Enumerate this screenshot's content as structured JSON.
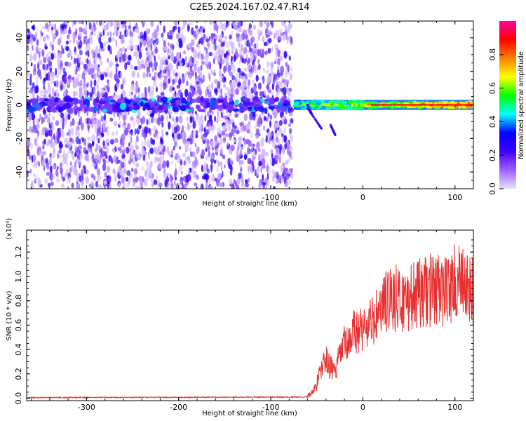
{
  "page": {
    "title": "C2E5.2024.167.02.47.R14"
  },
  "chart_data": [
    {
      "type": "heatmap",
      "xlabel": "Height of straight line (km)",
      "ylabel": "Frequency (Hz)",
      "xlim": [
        -365,
        120
      ],
      "ylim": [
        -50,
        50
      ],
      "x_ticks": [
        -300,
        -200,
        -100,
        0,
        100
      ],
      "y_ticks": [
        -40,
        -20,
        0,
        20,
        40
      ],
      "colorbar": {
        "label": "Normalized spectral amplitude",
        "range": [
          0.0,
          1.0
        ],
        "ticks": [
          0.0,
          0.2,
          0.4,
          0.6,
          0.8
        ],
        "colors": [
          "#e6e0ff",
          "#a060ff",
          "#4000ff",
          "#0000ff",
          "#00ffff",
          "#00ff00",
          "#ffff00",
          "#ff8000",
          "#ff0000",
          "#ff00a0"
        ]
      },
      "noise_region_x": [
        -365,
        -77
      ],
      "signal_band_center_hz": 0,
      "signal_band_halfwidth_hz": 3,
      "strong_signal_x": [
        -75,
        120
      ],
      "branch_segments": [
        {
          "x": [
            -60,
            -45
          ],
          "y": [
            -2,
            -14
          ]
        },
        {
          "x": [
            -35,
            -30
          ],
          "y": [
            -12,
            -18
          ]
        },
        {
          "x": [
            -60,
            -55
          ],
          "y": [
            0,
            -6
          ]
        }
      ]
    },
    {
      "type": "line",
      "xlabel": "Height of straight line (km)",
      "ylabel": "SNR (10 * v/v)",
      "y_multiplier": "(x10⁴)",
      "xlim": [
        -365,
        120
      ],
      "ylim": [
        -0.02,
        1.38
      ],
      "x_ticks": [
        -300,
        -200,
        -100,
        0,
        100
      ],
      "y_ticks": [
        0.0,
        0.2,
        0.4,
        0.6,
        0.8,
        1.0,
        1.2
      ],
      "series": [
        {
          "color": "#e83030",
          "x": [
            -365,
            -60,
            -55,
            -50,
            -45,
            -40,
            -35,
            -30,
            -25,
            -20,
            -15,
            -10,
            -5,
            0,
            10,
            20,
            30,
            40,
            50,
            60,
            70,
            80,
            90,
            100,
            110,
            120
          ],
          "y": [
            0.005,
            0.01,
            0.05,
            0.12,
            0.25,
            0.32,
            0.25,
            0.22,
            0.35,
            0.45,
            0.42,
            0.55,
            0.55,
            0.58,
            0.62,
            0.72,
            0.85,
            0.8,
            0.82,
            0.85,
            0.88,
            0.9,
            0.88,
            0.95,
            0.92,
            0.85
          ]
        }
      ]
    }
  ]
}
